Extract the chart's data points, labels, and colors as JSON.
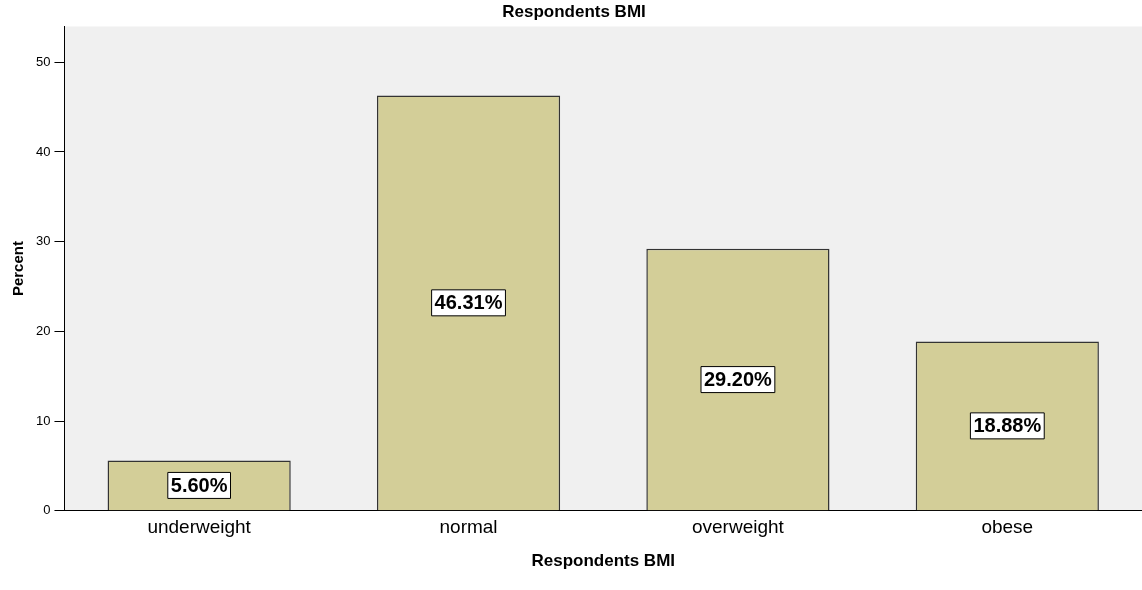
{
  "chart_data": {
    "type": "bar",
    "title": "Respondents BMI",
    "xlabel": "Respondents BMI",
    "ylabel": "Percent",
    "categories": [
      "underweight",
      "normal",
      "overweight",
      "obese"
    ],
    "values": [
      5.6,
      46.31,
      29.2,
      18.88
    ],
    "value_labels": [
      "5.60%",
      "46.31%",
      "29.20%",
      "18.88%"
    ],
    "color": "#d3ce98",
    "ylim": [
      0,
      54
    ],
    "yticks": [
      0,
      10,
      20,
      30,
      40,
      50
    ],
    "grid": false,
    "legend": false
  }
}
